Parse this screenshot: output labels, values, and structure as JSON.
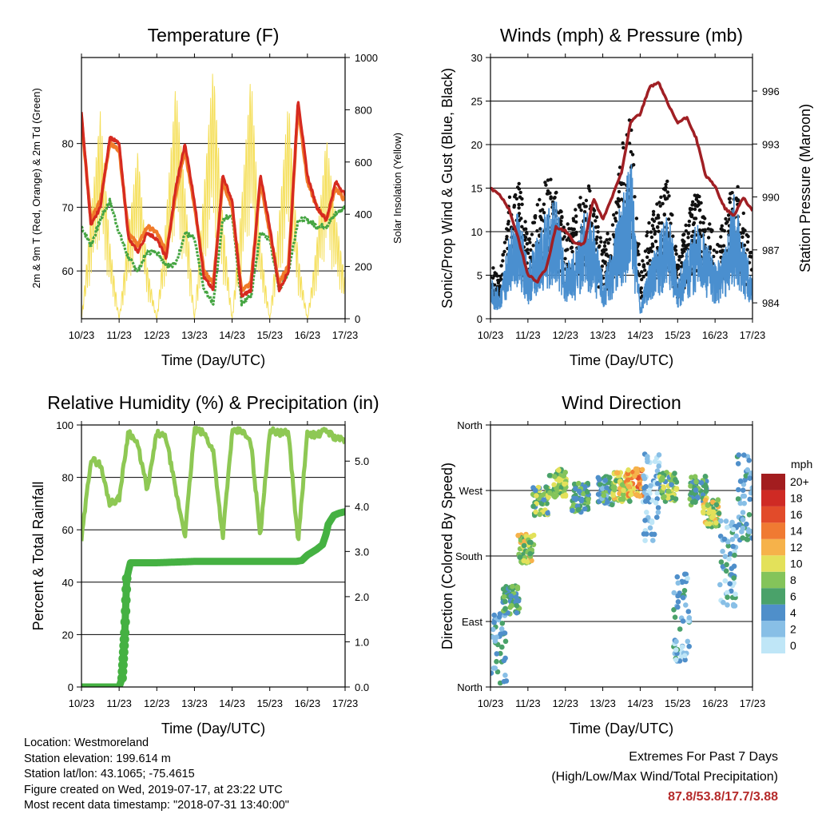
{
  "colors": {
    "t2m": "#d62a20",
    "t9m": "#f07b2a",
    "td": "#45a542",
    "solar": "#f5df5a",
    "sonic": "#111111",
    "prop": "#4a8fcf",
    "pressure": "#a01f24",
    "rh": "#8ec854",
    "rain": "#45b142",
    "extremes": "#b52a2a"
  },
  "x_axis": {
    "label": "Time (Day/UTC)",
    "ticks": [
      "10/23",
      "11/23",
      "12/23",
      "13/23",
      "14/23",
      "15/23",
      "16/23",
      "17/23"
    ]
  },
  "chart_data": [
    {
      "id": "temperature",
      "type": "line",
      "title": "Temperature (F)",
      "xlabel": "Time (Day/UTC)",
      "ylabel": "2m & 9m T (Red, Orange) & 2m Td (Green)",
      "ylabel_right": "Solar Insolation (Yellow)",
      "ylim": [
        52.5,
        93.5
      ],
      "yticks": [
        60,
        70,
        80
      ],
      "ylim_right": [
        0,
        1000
      ],
      "yticks_right": [
        0,
        200,
        400,
        600,
        800,
        1000
      ],
      "grid": true,
      "x": [
        0,
        0.25,
        0.5,
        0.75,
        1,
        1.25,
        1.5,
        1.75,
        2,
        2.25,
        2.5,
        2.75,
        3,
        3.25,
        3.5,
        3.75,
        4,
        4.25,
        4.5,
        4.75,
        5,
        5.25,
        5.5,
        5.75,
        6,
        6.25,
        6.5,
        6.75,
        7
      ],
      "series": [
        {
          "key": "t2m",
          "values": [
            85,
            67,
            70,
            81,
            80,
            65,
            63,
            66,
            65,
            62,
            73,
            80,
            71,
            59,
            57,
            75,
            71,
            56,
            57,
            75,
            67,
            57,
            60,
            87,
            75,
            70,
            68,
            74,
            72
          ]
        },
        {
          "key": "t9m",
          "values": [
            84,
            68,
            71,
            80,
            79,
            66,
            64,
            67,
            66,
            63,
            72,
            79,
            70,
            60,
            58,
            74,
            70,
            57,
            58,
            74,
            66,
            58,
            61,
            86,
            74,
            70,
            68,
            73,
            71
          ]
        },
        {
          "key": "td",
          "values": [
            67,
            64,
            68,
            71,
            66,
            62,
            60,
            63,
            63,
            61,
            61,
            66,
            65,
            57,
            55,
            68,
            69,
            55,
            56,
            66,
            65,
            57,
            60,
            68,
            68,
            67,
            67,
            69,
            70
          ]
        },
        {
          "key": "solar",
          "axis": "right",
          "values": [
            0,
            400,
            800,
            300,
            0,
            350,
            650,
            200,
            0,
            400,
            900,
            500,
            0,
            500,
            980,
            400,
            0,
            450,
            950,
            300,
            0,
            400,
            850,
            250,
            0,
            300,
            700,
            400,
            150
          ]
        }
      ]
    },
    {
      "id": "winds",
      "type": "line",
      "title": "Winds (mph) & Pressure (mb)",
      "xlabel": "Time (Day/UTC)",
      "ylabel": "Sonic/Prop Wind & Gust (Blue, Black)",
      "ylabel_right": "Station Pressure (Maroon)",
      "ylim": [
        0,
        30
      ],
      "yticks": [
        0,
        5,
        10,
        15,
        20,
        25,
        30
      ],
      "ylim_right": [
        983.1,
        997.9
      ],
      "yticks_right": [
        984,
        987,
        990,
        993,
        996
      ],
      "grid": true,
      "x": [
        0,
        0.25,
        0.5,
        0.75,
        1,
        1.25,
        1.5,
        1.75,
        2,
        2.25,
        2.5,
        2.75,
        3,
        3.25,
        3.5,
        3.75,
        4,
        4.25,
        4.5,
        4.75,
        5,
        5.25,
        5.5,
        5.75,
        6,
        6.25,
        6.5,
        6.75,
        7
      ],
      "series": [
        {
          "key": "gust",
          "values": [
            6,
            4,
            12,
            15,
            8,
            12,
            14,
            14,
            9,
            11,
            15,
            12,
            7,
            10,
            17,
            21,
            5,
            10,
            12,
            14,
            6,
            10,
            13,
            11,
            8,
            10,
            15,
            11,
            6
          ]
        },
        {
          "key": "prop",
          "values": [
            3,
            2,
            6,
            8,
            4,
            6,
            8,
            9,
            4,
            5,
            8,
            7,
            3,
            5,
            9,
            12,
            1,
            4,
            6,
            8,
            3,
            5,
            7,
            6,
            4,
            5,
            9,
            6,
            3
          ]
        },
        {
          "key": "pressure",
          "axis": "right",
          "values": [
            990.5,
            990.1,
            989.3,
            987.6,
            985.6,
            985.2,
            986,
            988.3,
            988.1,
            987.4,
            987.3,
            989.9,
            988.7,
            990,
            991.4,
            994.3,
            994.7,
            996.2,
            996.5,
            995.2,
            994.2,
            994.5,
            993.3,
            991.2,
            990.6,
            989.4,
            988.9,
            990,
            989.2
          ]
        }
      ]
    },
    {
      "id": "humidity",
      "type": "line",
      "title": "Relative Humidity (%) & Precipitation (in)",
      "xlabel": "Time (Day/UTC)",
      "ylabel": "Percent & Total Rainfall",
      "ylim": [
        0,
        100
      ],
      "yticks": [
        0,
        20,
        40,
        60,
        80,
        100
      ],
      "ylim_right": [
        0,
        5.8
      ],
      "yticks_right": [
        "0.0",
        "1.0",
        "2.0",
        "3.0",
        "4.0",
        "5.0"
      ],
      "grid": true,
      "x": [
        0,
        0.25,
        0.5,
        0.75,
        1,
        1.25,
        1.5,
        1.75,
        2,
        2.25,
        2.5,
        2.75,
        3,
        3.25,
        3.5,
        3.75,
        4,
        4.25,
        4.5,
        4.75,
        5,
        5.25,
        5.5,
        5.75,
        6,
        6.25,
        6.5,
        6.75,
        7
      ],
      "series": [
        {
          "key": "rh",
          "values": [
            56,
            87,
            85,
            70,
            72,
            98,
            92,
            75,
            97,
            95,
            75,
            58,
            98,
            97,
            90,
            57,
            97,
            98,
            93,
            58,
            98,
            97,
            97,
            55,
            97,
            96,
            98,
            95,
            94
          ]
        },
        {
          "key": "rain",
          "axis": "right",
          "x": [
            0,
            1.0,
            1.08,
            1.15,
            1.2,
            1.3,
            2,
            3,
            4,
            5,
            5.7,
            5.85,
            6.0,
            6.25,
            6.4,
            6.5,
            6.55,
            6.7,
            6.85,
            7
          ],
          "values": [
            0,
            0,
            0.2,
            1.2,
            2.4,
            2.75,
            2.75,
            2.78,
            2.78,
            2.78,
            2.78,
            2.8,
            2.92,
            3.05,
            3.15,
            3.4,
            3.6,
            3.8,
            3.85,
            3.88
          ]
        }
      ]
    },
    {
      "id": "wind-direction",
      "type": "scatter",
      "title": "Wind Direction",
      "xlabel": "Time (Day/UTC)",
      "ylabel": "Direction (Colored By Speed)",
      "ylim": [
        0,
        360
      ],
      "yticks": [
        "North",
        "East",
        "South",
        "West",
        "North"
      ],
      "grid": true,
      "colorbar": {
        "title": "mph",
        "labels": [
          "0",
          "2",
          "4",
          "6",
          "8",
          "10",
          "12",
          "14",
          "16",
          "18",
          "20+"
        ],
        "colors": [
          "#bfe6f7",
          "#88bfe6",
          "#4f8fca",
          "#4aa26a",
          "#84c45a",
          "#e3e15a",
          "#f6b24a",
          "#f07a32",
          "#e24b2a",
          "#cf2a24",
          "#a31d1f"
        ]
      },
      "clusters": [
        {
          "x": 0.2,
          "dir": 45,
          "speed": 4
        },
        {
          "x": 0.55,
          "dir": 120,
          "speed": 6
        },
        {
          "x": 0.95,
          "dir": 190,
          "speed": 9
        },
        {
          "x": 1.35,
          "dir": 255,
          "speed": 7
        },
        {
          "x": 1.8,
          "dir": 280,
          "speed": 8
        },
        {
          "x": 2.4,
          "dir": 260,
          "speed": 6
        },
        {
          "x": 3.1,
          "dir": 270,
          "speed": 5
        },
        {
          "x": 3.5,
          "dir": 275,
          "speed": 9
        },
        {
          "x": 3.85,
          "dir": 280,
          "speed": 13
        },
        {
          "x": 4.3,
          "dir": 260,
          "speed": 2
        },
        {
          "x": 4.75,
          "dir": 275,
          "speed": 7
        },
        {
          "x": 5.1,
          "dir": 95,
          "speed": 3
        },
        {
          "x": 5.55,
          "dir": 270,
          "speed": 6
        },
        {
          "x": 5.9,
          "dir": 240,
          "speed": 9
        },
        {
          "x": 6.35,
          "dir": 170,
          "speed": 3
        },
        {
          "x": 6.8,
          "dir": 260,
          "speed": 4
        }
      ]
    }
  ],
  "info": {
    "location": "Location: Westmoreland",
    "elevation": "Station elevation: 199.614 m",
    "latlon": "Station lat/lon: 43.1065; -75.4615",
    "created": "Figure created on Wed, 2019-07-17, at 23:22 UTC",
    "recent": "Most recent data timestamp: \"2018-07-31 13:40:00\""
  },
  "extremes": {
    "title": "Extremes For Past 7 Days",
    "subtitle": "(High/Low/Max Wind/Total Precipitation)",
    "values": "87.8/53.8/17.7/3.88"
  }
}
